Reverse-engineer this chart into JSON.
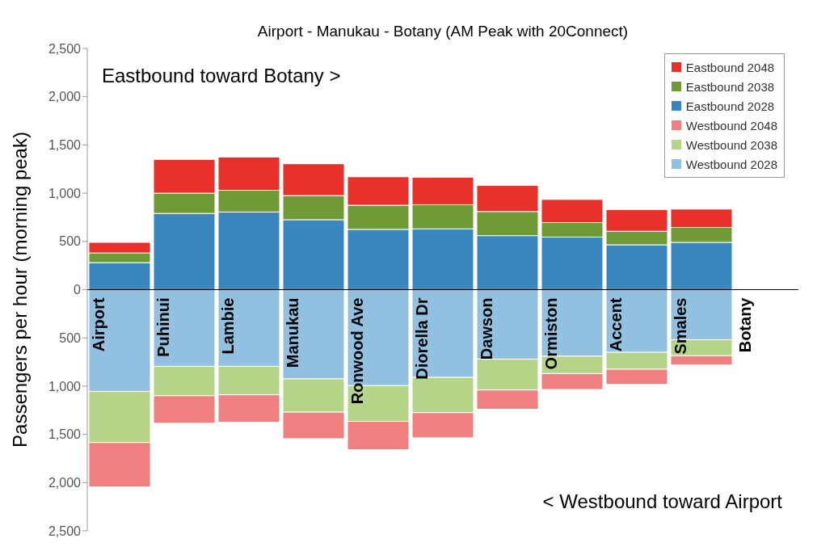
{
  "chart_data": {
    "type": "bar",
    "title": "Airport - Manukau - Botany (AM Peak with 20Connect)",
    "ylabel": "Passengers per hour (morning peak)",
    "annotations": [
      "Eastbound toward Botany >",
      "< Westbound toward Airport"
    ],
    "categories": [
      "Airport",
      "Puhinui",
      "Lambie",
      "Manukau",
      "Ronwood Ave",
      "Diorella Dr",
      "Dawson",
      "Ormiston",
      "Accent",
      "Smales",
      "Botany"
    ],
    "stacked": true,
    "series": [
      {
        "name": "Westbound 2028",
        "color": "#92c0e0",
        "values": [
          -1055,
          -795,
          -795,
          -925,
          -995,
          -910,
          -720,
          -690,
          -650,
          -520,
          null
        ]
      },
      {
        "name": "Westbound 2038",
        "color": "#b5d488",
        "values": [
          -530,
          -305,
          -295,
          -345,
          -370,
          -365,
          -320,
          -180,
          -175,
          -165,
          null
        ]
      },
      {
        "name": "Westbound 2048",
        "color": "#f08080",
        "values": [
          -460,
          -285,
          -285,
          -275,
          -295,
          -260,
          -200,
          -165,
          -155,
          -95,
          null
        ]
      },
      {
        "name": "Eastbound 2028",
        "color": "#3a87bf",
        "values": [
          280,
          790,
          805,
          725,
          625,
          630,
          560,
          545,
          465,
          490,
          null
        ]
      },
      {
        "name": "Eastbound 2038",
        "color": "#6f9a35",
        "values": [
          100,
          210,
          225,
          250,
          250,
          250,
          250,
          150,
          140,
          155,
          null
        ]
      },
      {
        "name": "Eastbound 2048",
        "color": "#e8302a",
        "values": [
          110,
          350,
          345,
          330,
          295,
          285,
          270,
          240,
          225,
          190,
          null
        ]
      }
    ],
    "ylim": [
      -2500,
      2500
    ],
    "yticks": [
      {
        "value": -2500,
        "label": "2,500"
      },
      {
        "value": -2000,
        "label": "2,000"
      },
      {
        "value": -1500,
        "label": "1,500"
      },
      {
        "value": -1000,
        "label": "1,000"
      },
      {
        "value": -500,
        "label": "500"
      },
      0,
      500,
      {
        "value": 1000,
        "label": "1,000"
      },
      {
        "value": 1500,
        "label": "1,500"
      },
      {
        "value": 2000,
        "label": "2,000"
      },
      {
        "value": 2500,
        "label": "2,500"
      }
    ],
    "legend": "top right",
    "grid": false
  }
}
